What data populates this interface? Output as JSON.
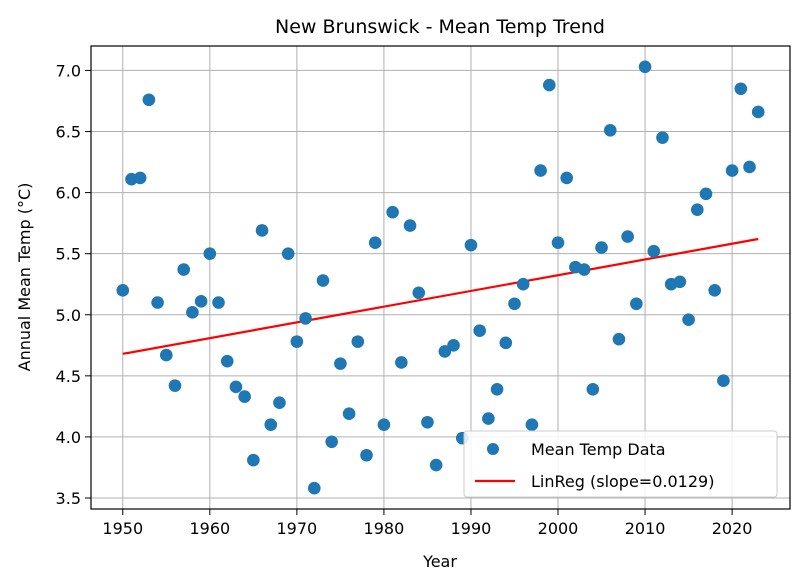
{
  "chart_data": {
    "type": "scatter",
    "title": "New Brunswick - Mean Temp Trend",
    "xlabel": "Year",
    "ylabel": "Annual Mean Temp (°C)",
    "xlim": [
      1946.35,
      2026.65
    ],
    "ylim": [
      3.41,
      7.2
    ],
    "xticks": [
      1950,
      1960,
      1970,
      1980,
      1990,
      2000,
      2010,
      2020
    ],
    "yticks": [
      3.5,
      4.0,
      4.5,
      5.0,
      5.5,
      6.0,
      6.5,
      7.0
    ],
    "ytick_labels": [
      "3.5",
      "4.0",
      "4.5",
      "5.0",
      "5.5",
      "6.0",
      "6.5",
      "7.0"
    ],
    "grid": true,
    "legend_position": "lower-right",
    "colors": {
      "points": "#1f77b4",
      "regression": "#ff0000",
      "grid": "#b0b0b0"
    },
    "series": [
      {
        "name": "Mean Temp Data",
        "kind": "scatter",
        "x": [
          1950,
          1951,
          1952,
          1953,
          1954,
          1955,
          1956,
          1957,
          1958,
          1959,
          1960,
          1961,
          1962,
          1963,
          1964,
          1965,
          1966,
          1967,
          1968,
          1969,
          1970,
          1971,
          1972,
          1973,
          1974,
          1975,
          1976,
          1977,
          1978,
          1979,
          1980,
          1981,
          1982,
          1983,
          1984,
          1985,
          1986,
          1987,
          1988,
          1989,
          1990,
          1991,
          1992,
          1993,
          1994,
          1995,
          1996,
          1997,
          1998,
          1999,
          2000,
          2001,
          2002,
          2003,
          2004,
          2005,
          2006,
          2007,
          2008,
          2009,
          2010,
          2011,
          2012,
          2013,
          2014,
          2015,
          2016,
          2017,
          2018,
          2019,
          2020,
          2021,
          2022,
          2023
        ],
        "y": [
          5.2,
          6.11,
          6.12,
          6.76,
          5.1,
          4.67,
          4.42,
          5.37,
          5.02,
          5.11,
          5.5,
          5.1,
          4.62,
          4.41,
          4.33,
          3.81,
          5.69,
          4.1,
          4.28,
          5.5,
          4.78,
          4.97,
          3.58,
          5.28,
          3.96,
          4.6,
          4.19,
          4.78,
          3.85,
          5.59,
          4.1,
          5.84,
          4.61,
          5.73,
          5.18,
          4.12,
          3.77,
          4.7,
          4.75,
          3.99,
          5.57,
          4.87,
          4.15,
          4.39,
          4.77,
          5.09,
          5.25,
          4.1,
          6.18,
          6.88,
          5.59,
          6.12,
          5.39,
          5.37,
          4.39,
          5.55,
          6.51,
          4.8,
          5.64,
          5.09,
          7.03,
          5.52,
          6.45,
          5.25,
          5.27,
          4.96,
          5.86,
          5.99,
          5.2,
          4.46,
          6.18,
          6.85,
          6.21,
          6.66
        ]
      },
      {
        "name": "LinReg (slope=0.0129)",
        "kind": "line",
        "x": [
          1950,
          2023
        ],
        "y": [
          4.68,
          5.62
        ]
      }
    ]
  }
}
